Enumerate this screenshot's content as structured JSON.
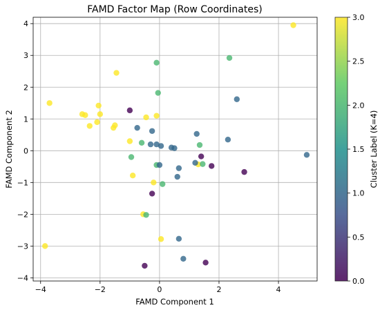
{
  "chart_data": {
    "type": "scatter",
    "title": "FAMD Factor Map (Row Coordinates)",
    "xlabel": "FAMD Component 1",
    "ylabel": "FAMD Component 2",
    "xlim": [
      -4.25,
      5.3
    ],
    "ylim": [
      -4.1,
      4.2
    ],
    "xticks": [
      -4,
      -2,
      0,
      2,
      4
    ],
    "yticks": [
      -4,
      -3,
      -2,
      -1,
      0,
      1,
      2,
      3,
      4
    ],
    "grid": true,
    "colormap": "viridis",
    "colorbar": {
      "label": "Cluster Label (K=4)",
      "min": 0.0,
      "max": 3.0,
      "ticks": [
        "0.0",
        "0.5",
        "1.0",
        "1.5",
        "2.0",
        "2.5",
        "3.0"
      ]
    },
    "points": [
      {
        "x": 4.5,
        "y": 3.95,
        "c": 3
      },
      {
        "x": -3.7,
        "y": 1.5,
        "c": 3
      },
      {
        "x": -2.6,
        "y": 1.15,
        "c": 3
      },
      {
        "x": -2.5,
        "y": 1.12,
        "c": 3
      },
      {
        "x": -2.35,
        "y": 0.78,
        "c": 3
      },
      {
        "x": -2.1,
        "y": 0.9,
        "c": 3
      },
      {
        "x": -2.05,
        "y": 1.42,
        "c": 3
      },
      {
        "x": -2.0,
        "y": 1.15,
        "c": 3
      },
      {
        "x": -1.55,
        "y": 0.72,
        "c": 3
      },
      {
        "x": -1.5,
        "y": 0.8,
        "c": 3
      },
      {
        "x": -1.45,
        "y": 2.45,
        "c": 3
      },
      {
        "x": -1.0,
        "y": 0.3,
        "c": 3
      },
      {
        "x": -0.9,
        "y": -0.78,
        "c": 3
      },
      {
        "x": -0.45,
        "y": 1.05,
        "c": 3
      },
      {
        "x": -0.1,
        "y": 1.1,
        "c": 3
      },
      {
        "x": -0.2,
        "y": -1.0,
        "c": 3
      },
      {
        "x": -0.55,
        "y": -2.0,
        "c": 3
      },
      {
        "x": 0.05,
        "y": -2.78,
        "c": 3
      },
      {
        "x": -3.85,
        "y": -3.0,
        "c": 3
      },
      {
        "x": 1.3,
        "y": -0.43,
        "c": 3
      },
      {
        "x": -0.1,
        "y": 2.77,
        "c": 2
      },
      {
        "x": -0.05,
        "y": 1.82,
        "c": 2
      },
      {
        "x": 2.35,
        "y": 2.92,
        "c": 2
      },
      {
        "x": -0.6,
        "y": 0.25,
        "c": 2
      },
      {
        "x": -0.95,
        "y": -0.2,
        "c": 2
      },
      {
        "x": -0.1,
        "y": -0.45,
        "c": 2
      },
      {
        "x": 0.1,
        "y": -1.05,
        "c": 2
      },
      {
        "x": -0.45,
        "y": -2.02,
        "c": 2
      },
      {
        "x": 1.35,
        "y": 0.18,
        "c": 2
      },
      {
        "x": 1.45,
        "y": -0.42,
        "c": 2
      },
      {
        "x": -0.75,
        "y": 0.72,
        "c": 1
      },
      {
        "x": -0.3,
        "y": 0.2,
        "c": 1
      },
      {
        "x": -0.25,
        "y": 0.62,
        "c": 1
      },
      {
        "x": -0.1,
        "y": 0.2,
        "c": 1
      },
      {
        "x": 0.05,
        "y": 0.15,
        "c": 1
      },
      {
        "x": 0.4,
        "y": 0.1,
        "c": 1
      },
      {
        "x": 0.5,
        "y": 0.08,
        "c": 1
      },
      {
        "x": 0.65,
        "y": -0.55,
        "c": 1
      },
      {
        "x": 0.6,
        "y": -0.82,
        "c": 1
      },
      {
        "x": 0.0,
        "y": -0.45,
        "c": 1
      },
      {
        "x": 1.2,
        "y": -0.38,
        "c": 1
      },
      {
        "x": 1.25,
        "y": 0.53,
        "c": 1
      },
      {
        "x": 2.3,
        "y": 0.35,
        "c": 1
      },
      {
        "x": 2.6,
        "y": 1.62,
        "c": 1
      },
      {
        "x": 4.95,
        "y": -0.13,
        "c": 1
      },
      {
        "x": 0.8,
        "y": -3.4,
        "c": 1
      },
      {
        "x": 0.65,
        "y": -2.77,
        "c": 1
      },
      {
        "x": -1.0,
        "y": 1.27,
        "c": 0
      },
      {
        "x": 1.4,
        "y": -0.18,
        "c": 0
      },
      {
        "x": 1.75,
        "y": -0.48,
        "c": 0
      },
      {
        "x": 2.85,
        "y": -0.67,
        "c": 0
      },
      {
        "x": -0.25,
        "y": -1.35,
        "c": 0
      },
      {
        "x": -0.5,
        "y": -3.62,
        "c": 0
      },
      {
        "x": 1.55,
        "y": -3.52,
        "c": 0
      }
    ]
  }
}
